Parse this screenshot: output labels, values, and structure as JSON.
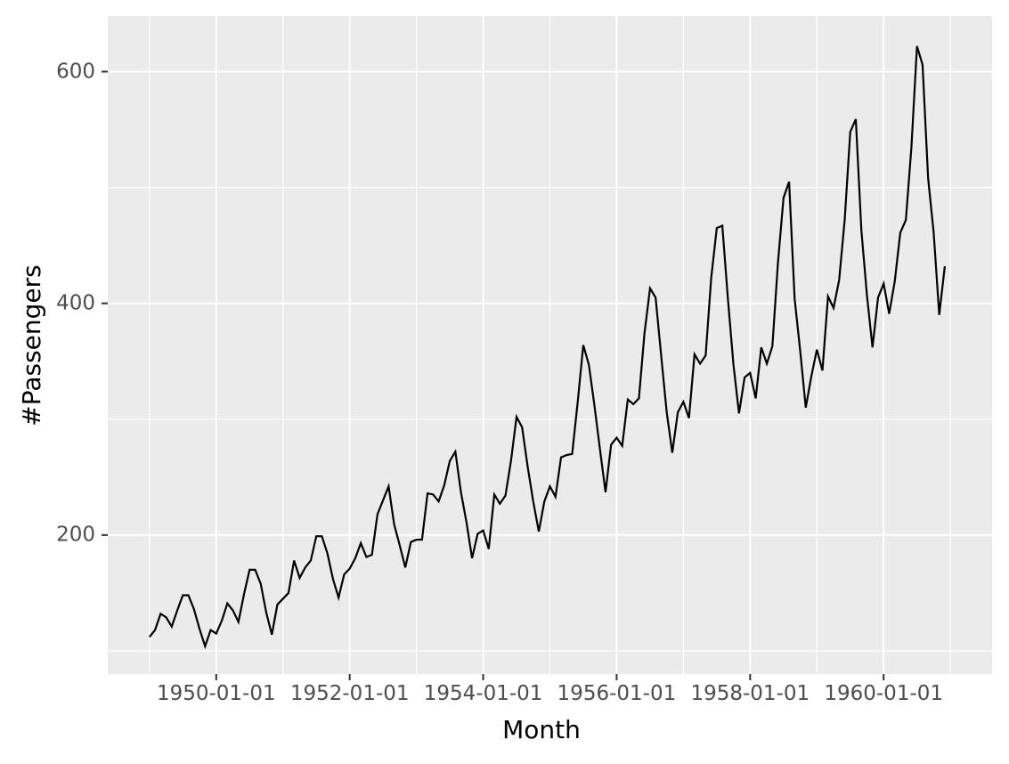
{
  "chart_data": {
    "type": "line",
    "title": "",
    "xlabel": "Month",
    "ylabel": "#Passengers",
    "legend": "none",
    "grid": "major and minor, white on gray panel",
    "x_tick_labels": [
      "1950-01-01",
      "1952-01-01",
      "1954-01-01",
      "1956-01-01",
      "1958-01-01",
      "1960-01-01"
    ],
    "x_tick_months": [
      12,
      36,
      60,
      84,
      108,
      132
    ],
    "x_minor_months": [
      0,
      24,
      48,
      72,
      96,
      120,
      144
    ],
    "y_tick_labels": [
      "200",
      "400",
      "600"
    ],
    "y_ticks": [
      200,
      400,
      600
    ],
    "y_minor_ticks": [
      100,
      300,
      500
    ],
    "xlim_months": [
      -7.5,
      151.5
    ],
    "ylim": [
      80,
      648
    ],
    "series": [
      {
        "name": "#Passengers",
        "start": "1949-01",
        "frequency": "monthly",
        "values": [
          112,
          118,
          132,
          129,
          121,
          135,
          148,
          148,
          136,
          119,
          104,
          118,
          115,
          126,
          141,
          135,
          125,
          149,
          170,
          170,
          158,
          133,
          114,
          140,
          145,
          150,
          178,
          163,
          172,
          178,
          199,
          199,
          184,
          162,
          146,
          166,
          171,
          180,
          193,
          181,
          183,
          218,
          230,
          242,
          209,
          191,
          172,
          194,
          196,
          196,
          236,
          235,
          229,
          243,
          264,
          272,
          237,
          211,
          180,
          201,
          204,
          188,
          235,
          227,
          234,
          264,
          302,
          293,
          259,
          229,
          203,
          229,
          242,
          233,
          267,
          269,
          270,
          315,
          364,
          347,
          312,
          274,
          237,
          278,
          284,
          277,
          317,
          313,
          318,
          374,
          413,
          405,
          355,
          306,
          271,
          306,
          315,
          301,
          356,
          348,
          355,
          422,
          465,
          467,
          404,
          347,
          305,
          336,
          340,
          318,
          362,
          348,
          363,
          435,
          491,
          505,
          404,
          359,
          310,
          337,
          360,
          342,
          406,
          396,
          420,
          472,
          548,
          559,
          463,
          407,
          362,
          405,
          417,
          391,
          419,
          461,
          472,
          535,
          622,
          606,
          508,
          461,
          390,
          432
        ]
      }
    ],
    "colors": {
      "figure_background": "#FFFFFF",
      "panel_background": "#EBEBEB",
      "gridline": "#FFFFFF",
      "line": "#000000",
      "tick_mark": "#333333",
      "tick_text": "#4D4D4D",
      "axis_title_text": "#000000"
    }
  }
}
